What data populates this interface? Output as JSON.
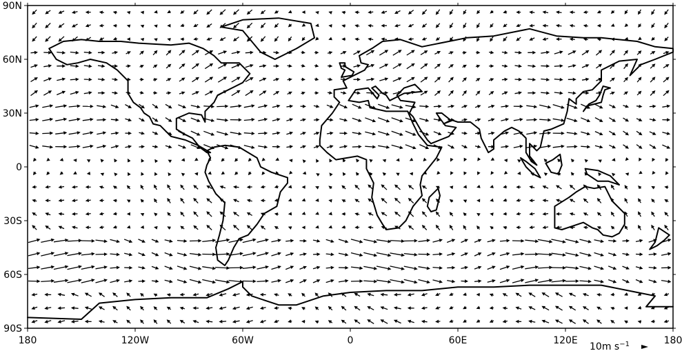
{
  "chart_data": {
    "type": "quiver",
    "projection": "plate-carree",
    "xlim": [
      -180,
      180
    ],
    "ylim": [
      -90,
      90
    ],
    "x_ticks": [
      -180,
      -120,
      -60,
      0,
      60,
      120,
      180
    ],
    "x_tick_labels": [
      "180",
      "120W",
      "60W",
      "0",
      "60E",
      "120E",
      "180"
    ],
    "y_ticks": [
      90,
      60,
      30,
      0,
      -30,
      -60,
      -90
    ],
    "y_tick_labels": [
      "90N",
      "60N",
      "30N",
      "0",
      "30S",
      "60S",
      "90S"
    ],
    "grid": false,
    "coastlines": true,
    "quiver_key": {
      "label_text": "10m s",
      "label_exponent": "−1",
      "reference_speed_ms": 10,
      "position": "bottom-right"
    },
    "wind_field": {
      "units": "m s-1",
      "grid_spacing_deg": 7.5,
      "lon_range": [
        -176.25,
        176.25
      ],
      "lat_range": [
        -86.25,
        86.25
      ],
      "description_pattern": [
        {
          "lat_band": [
            -90,
            -65
          ],
          "u": -5,
          "v": 1
        },
        {
          "lat_band": [
            -65,
            -35
          ],
          "u": 10,
          "v": 0
        },
        {
          "lat_band": [
            -35,
            -5
          ],
          "u": -4,
          "v": 2
        },
        {
          "lat_band": [
            -5,
            5
          ],
          "u": -2,
          "v": 0
        },
        {
          "lat_band": [
            5,
            35
          ],
          "u": 8,
          "v": -1
        },
        {
          "lat_band": [
            35,
            65
          ],
          "u": 6,
          "v": 2
        },
        {
          "lat_band": [
            65,
            90
          ],
          "u": -4,
          "v": -2
        }
      ]
    }
  },
  "colors": {
    "arrow": "#000000",
    "coast": "#000000",
    "axis": "#000000",
    "background": "#ffffff"
  }
}
